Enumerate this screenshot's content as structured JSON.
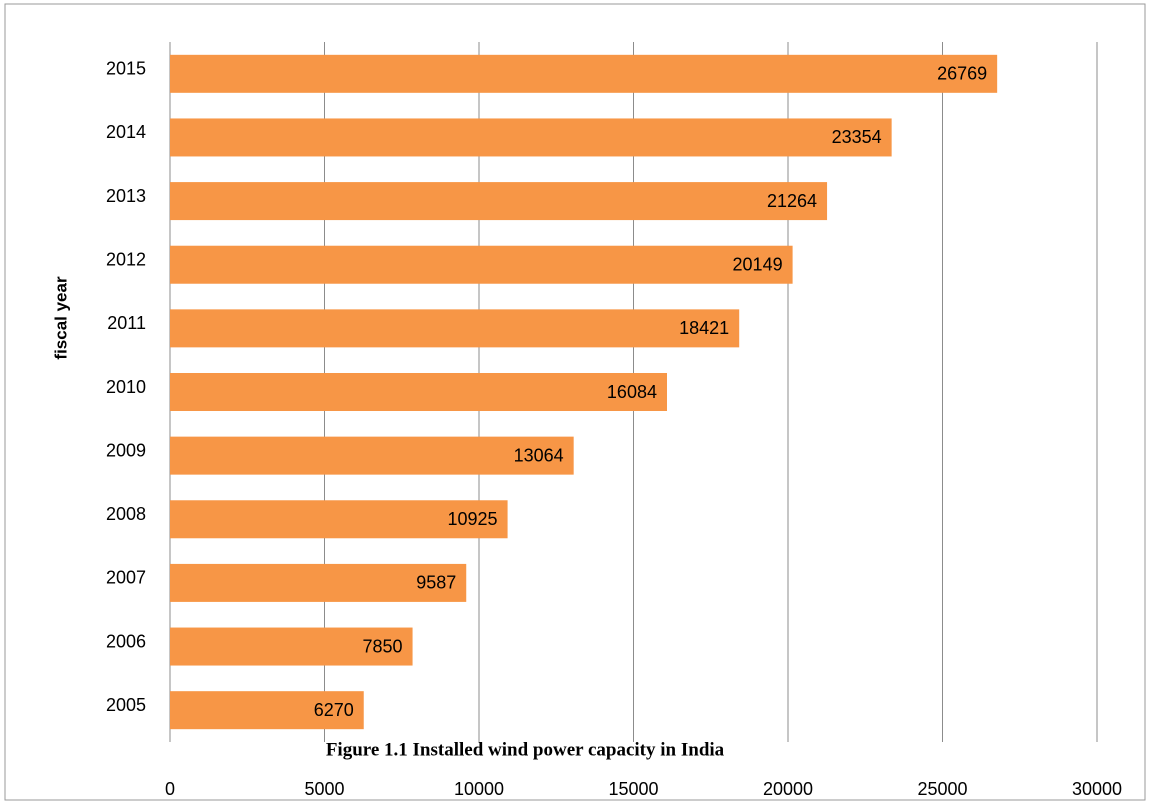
{
  "chart_data": {
    "type": "barh",
    "caption": "Figure 1.1 Installed wind power capacity in India",
    "ylabel": "fiscal year",
    "categories": [
      "2005",
      "2006",
      "2007",
      "2008",
      "2009",
      "2010",
      "2011",
      "2012",
      "2013",
      "2014",
      "2015"
    ],
    "values": [
      6270,
      7850,
      9587,
      10925,
      13064,
      16084,
      18421,
      20149,
      21264,
      23354,
      26769
    ],
    "color": "#f79646",
    "xlim": [
      0,
      30000
    ],
    "xticks": [
      0,
      5000,
      10000,
      15000,
      20000,
      25000,
      30000
    ],
    "grid": true
  }
}
